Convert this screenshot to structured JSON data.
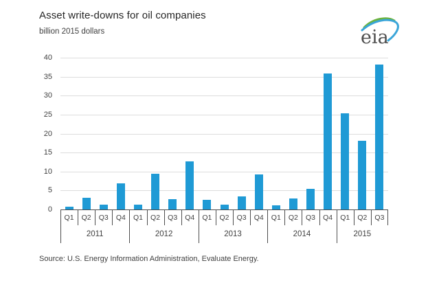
{
  "header": {
    "title": "Asset write-downs for oil companies",
    "subtitle": "billion 2015 dollars"
  },
  "footer": {
    "source": "Source:  U.S. Energy Information Administration, Evaluate Energy."
  },
  "logo": {
    "text": "eia"
  },
  "colors": {
    "bar": "#1f9ad5",
    "grid": "#dcdcdc",
    "axis": "#4d4d4d",
    "text": "#404040",
    "title": "#262626",
    "logo_text": "#4d4d4d",
    "logo_blue": "#3aa5d9",
    "logo_green": "#6cb33f",
    "logo_yellow": "#e3d32a"
  },
  "chart_data": {
    "type": "bar",
    "title": "Asset write-downs for oil companies",
    "ylabel": "billion 2015 dollars",
    "xlabel": "",
    "ylim": [
      0,
      40
    ],
    "yticks": [
      0,
      5,
      10,
      15,
      20,
      25,
      30,
      35,
      40
    ],
    "grid": true,
    "legend": false,
    "groups": [
      {
        "year": "2011",
        "quarters": [
          "Q1",
          "Q2",
          "Q3",
          "Q4"
        ],
        "values": [
          0.8,
          3.0,
          1.2,
          6.8
        ]
      },
      {
        "year": "2012",
        "quarters": [
          "Q1",
          "Q2",
          "Q3",
          "Q4"
        ],
        "values": [
          1.3,
          9.5,
          2.8,
          12.6
        ]
      },
      {
        "year": "2013",
        "quarters": [
          "Q1",
          "Q2",
          "Q3",
          "Q4"
        ],
        "values": [
          2.5,
          1.2,
          3.4,
          9.2
        ]
      },
      {
        "year": "2014",
        "quarters": [
          "Q1",
          "Q2",
          "Q3",
          "Q4"
        ],
        "values": [
          1.1,
          2.9,
          5.4,
          35.8
        ]
      },
      {
        "year": "2015",
        "quarters": [
          "Q1",
          "Q2",
          "Q3"
        ],
        "values": [
          25.3,
          18.1,
          38.2
        ]
      }
    ]
  }
}
